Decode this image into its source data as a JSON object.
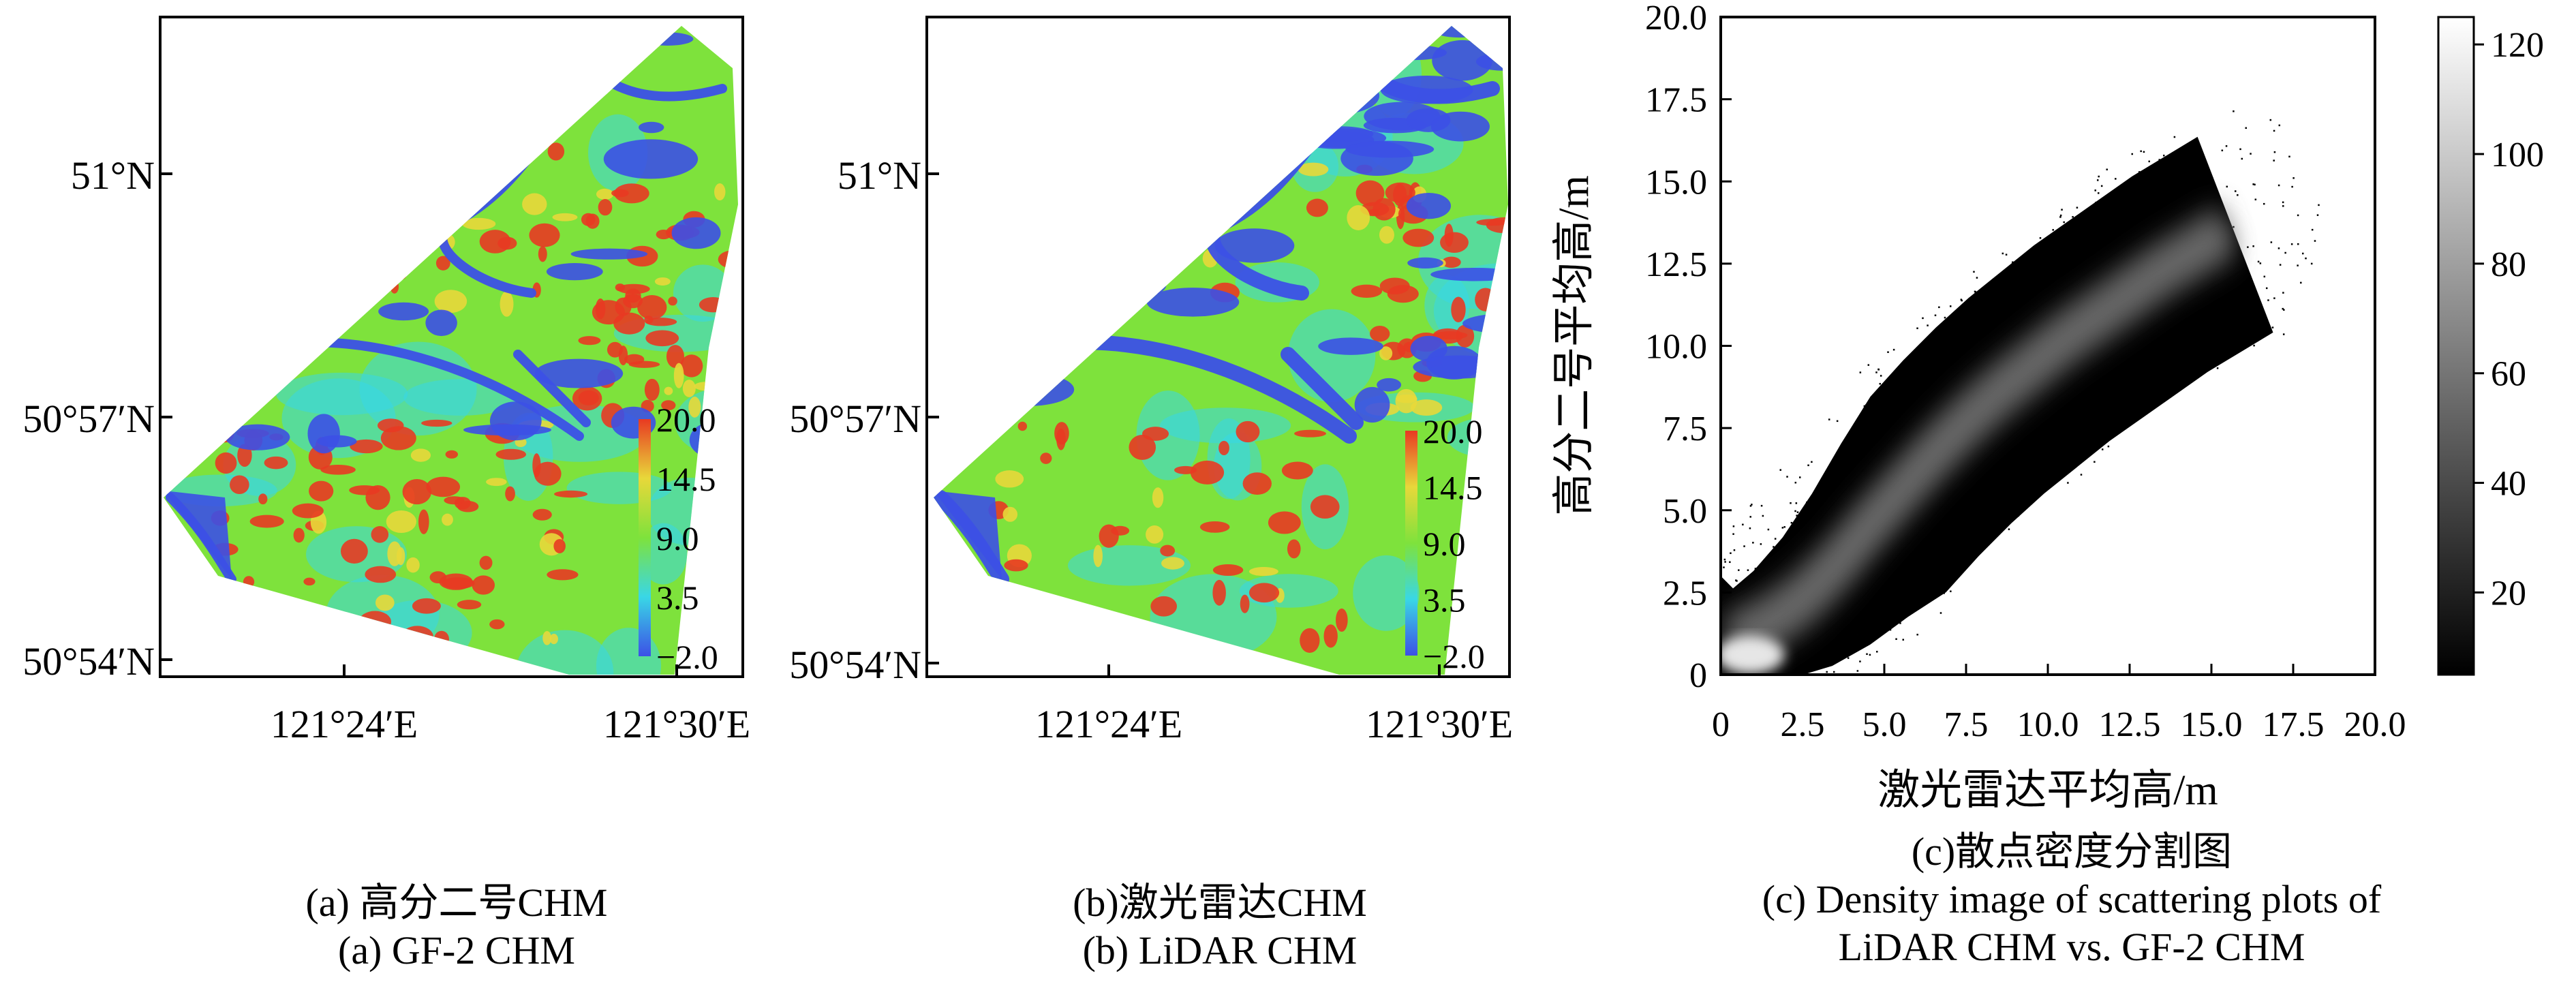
{
  "chart_data": [
    {
      "type": "heatmap",
      "panel": "a",
      "x_tick_labels": [
        "121°24′E",
        "121°30′E"
      ],
      "y_tick_labels": [
        "51°N",
        "50°57′N",
        "50°54′N"
      ],
      "colorbar": {
        "min": -2.0,
        "max": 20.0,
        "tick_labels": [
          "20.0",
          "14.5",
          "9.0",
          "3.5",
          "−2.0"
        ],
        "colors": [
          "#3c50e6",
          "#39d7e6",
          "#7ee23c",
          "#e8d83a",
          "#e83a22"
        ]
      },
      "caption": [
        "(a) 高分二号CHM",
        "(a) GF-2 CHM"
      ]
    },
    {
      "type": "heatmap",
      "panel": "b",
      "x_tick_labels": [
        "121°24′E",
        "121°30′E"
      ],
      "y_tick_labels": [
        "51°N",
        "50°57′N",
        "50°54′N"
      ],
      "colorbar": {
        "min": -2.0,
        "max": 20.0,
        "tick_labels": [
          "20.0",
          "14.5",
          "9.0",
          "3.5",
          "−2.0"
        ],
        "colors": [
          "#3c50e6",
          "#39d7e6",
          "#7ee23c",
          "#e8d83a",
          "#e83a22"
        ]
      },
      "caption": [
        "(b)激光雷达CHM",
        "(b) LiDAR CHM"
      ]
    },
    {
      "type": "heatmap",
      "panel": "c",
      "xlabel": "激光雷达平均高/m",
      "ylabel": "高分二号平均高/m",
      "xlim": [
        0,
        20
      ],
      "ylim": [
        0,
        20
      ],
      "x_ticks": [
        0,
        2.5,
        5.0,
        7.5,
        10.0,
        12.5,
        15.0,
        17.5,
        20.0
      ],
      "x_tick_labels": [
        "0",
        "2.5",
        "5.0",
        "7.5",
        "10.0",
        "12.5",
        "15.0",
        "17.5",
        "20.0"
      ],
      "y_ticks": [
        0,
        2.5,
        5.0,
        7.5,
        10.0,
        12.5,
        15.0,
        17.5,
        20.0
      ],
      "y_tick_labels": [
        "0",
        "2.5",
        "5.0",
        "7.5",
        "10.0",
        "12.5",
        "15.0",
        "17.5",
        "20.0"
      ],
      "density_ridge": [
        {
          "x": 0.3,
          "y": 1.0
        },
        {
          "x": 1.5,
          "y": 1.6
        },
        {
          "x": 2.5,
          "y": 2.3
        },
        {
          "x": 3.5,
          "y": 3.3
        },
        {
          "x": 4.5,
          "y": 4.5
        },
        {
          "x": 5.5,
          "y": 5.6
        },
        {
          "x": 6.5,
          "y": 6.7
        },
        {
          "x": 7.5,
          "y": 7.7
        },
        {
          "x": 8.5,
          "y": 8.6
        },
        {
          "x": 9.5,
          "y": 9.4
        },
        {
          "x": 10.5,
          "y": 10.2
        },
        {
          "x": 11.5,
          "y": 10.9
        },
        {
          "x": 12.5,
          "y": 11.6
        },
        {
          "x": 13.5,
          "y": 12.3
        },
        {
          "x": 14.5,
          "y": 12.9
        },
        {
          "x": 15.5,
          "y": 13.5
        }
      ],
      "colorbar": {
        "min": 5,
        "max": 125,
        "ticks": [
          20,
          40,
          60,
          80,
          100,
          120
        ],
        "tick_labels": [
          "20",
          "40",
          "60",
          "80",
          "100",
          "120"
        ],
        "colors": [
          "#000000",
          "#ffffff"
        ]
      },
      "caption": [
        "(c)散点密度分割图",
        "(c) Density image of scattering plots of",
        "LiDAR CHM vs. GF-2 CHM"
      ]
    }
  ]
}
